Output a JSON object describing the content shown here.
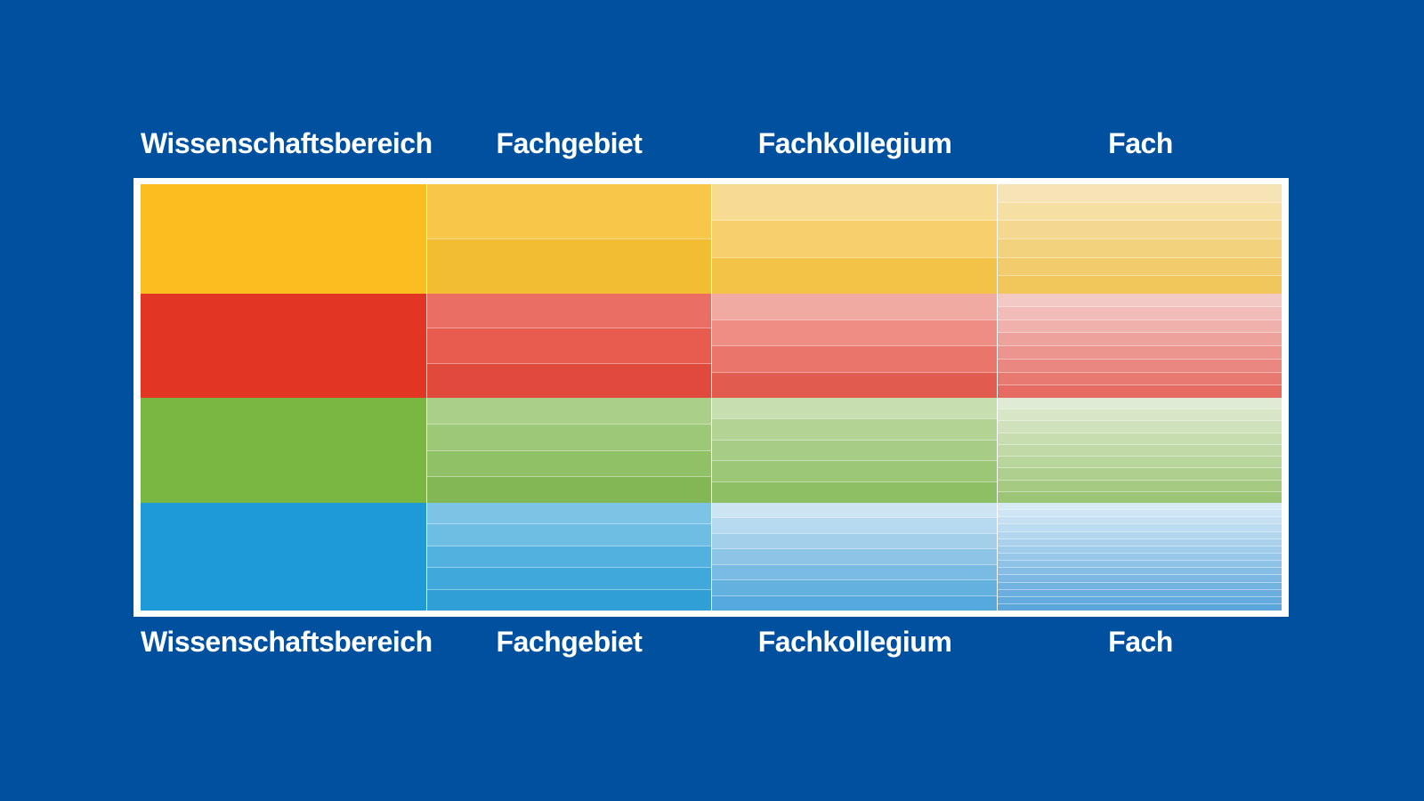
{
  "column_labels": [
    "Wissenschaftsbereich",
    "Fachgebiet",
    "Fachkollegium",
    "Fach"
  ],
  "colors": {
    "background": "#0050a0",
    "frame": "#ffffff"
  },
  "areas": [
    {
      "key": "yellow",
      "color": "#fbbd1f",
      "columns": [
        [
          "#fbbd1f"
        ],
        [
          "#f8c74a",
          "#f2bc33"
        ],
        [
          "#f8db92",
          "#f8cf6d",
          "#f2c347"
        ],
        [
          "#f6e3b6",
          "#f6dfa3",
          "#f5d890",
          "#f3d27e",
          "#f2cc6c",
          "#f1c75c"
        ]
      ]
    },
    {
      "key": "red",
      "color": "#e23523",
      "columns": [
        [
          "#e23523"
        ],
        [
          "#ea6e64",
          "#e75c4f",
          "#e04a3c"
        ],
        [
          "#f0aaa2",
          "#ee8d83",
          "#ea766b",
          "#e25b4f"
        ],
        [
          "#f3c9c6",
          "#f2bdb9",
          "#f0b0ab",
          "#eea29c",
          "#ec958e",
          "#ea8780",
          "#e87971",
          "#e66b62"
        ]
      ]
    },
    {
      "key": "green",
      "color": "#7ab642",
      "columns": [
        [
          "#7ab642"
        ],
        [
          "#a9cf88",
          "#9dc878",
          "#91c166",
          "#83b654"
        ],
        [
          "#c6deb0",
          "#b3d395",
          "#a7cc85",
          "#9cc776",
          "#8fbf65"
        ],
        [
          "#dfebd4",
          "#d6e6c6",
          "#cfe2bb",
          "#c7ddb0",
          "#c0d9a6",
          "#b8d59b",
          "#afcf8e",
          "#a6ca82",
          "#9cc576"
        ]
      ]
    },
    {
      "key": "blue",
      "color": "#1e9ad8",
      "columns": [
        [
          "#1e9ad8"
        ],
        [
          "#7cc3e6",
          "#6ebde3",
          "#53b1df",
          "#41a8db",
          "#2f9fd6"
        ],
        [
          "#cde4f3",
          "#b8daf0",
          "#a3cfeb",
          "#8ec5e7",
          "#79bbe3",
          "#64b0de",
          "#55a9dc"
        ],
        [
          "#d6eaf6",
          "#cde5f4",
          "#c4e0f2",
          "#bbdbf0",
          "#b2d6ee",
          "#a9d1ec",
          "#a0cceb",
          "#97c7e9",
          "#8ec2e7",
          "#85bde5",
          "#7cb8e3",
          "#73b3e1",
          "#6baedf",
          "#63aadd",
          "#5ba6db"
        ]
      ]
    }
  ]
}
